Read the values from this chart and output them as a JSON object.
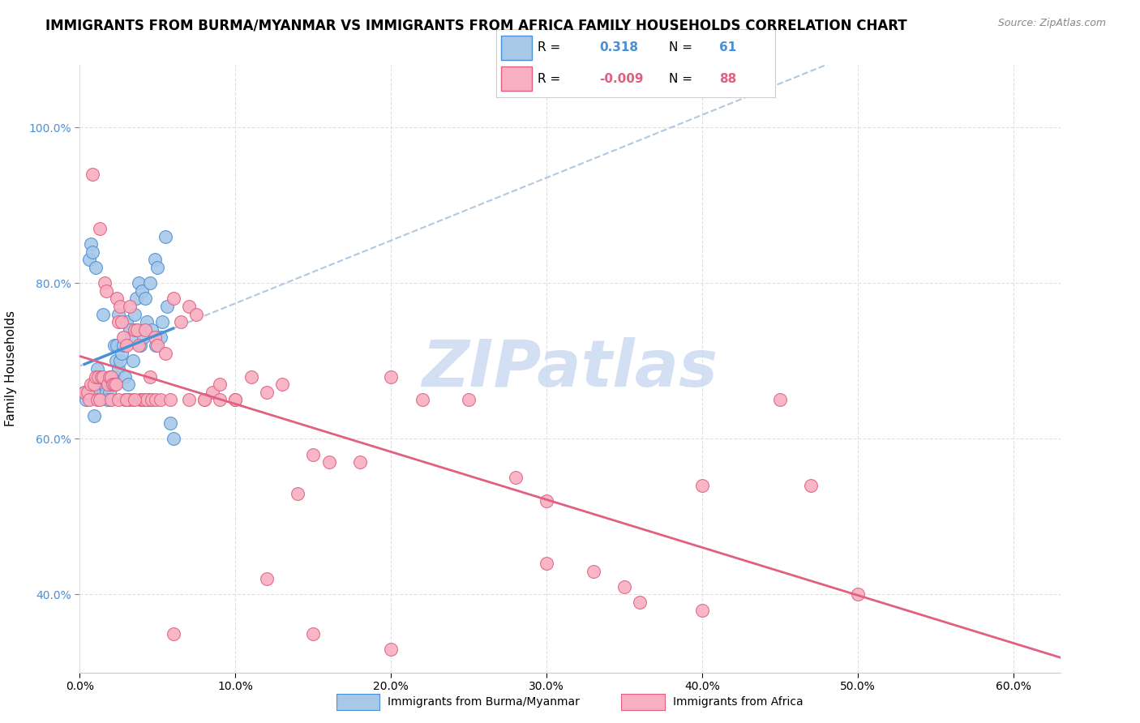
{
  "title": "IMMIGRANTS FROM BURMA/MYANMAR VS IMMIGRANTS FROM AFRICA FAMILY HOUSEHOLDS CORRELATION CHART",
  "source": "Source: ZipAtlas.com",
  "ylabel": "Family Households",
  "xlim": [
    0.0,
    0.63
  ],
  "ylim": [
    0.3,
    1.08
  ],
  "legend_r_blue": "0.318",
  "legend_n_blue": "61",
  "legend_r_pink": "-0.009",
  "legend_n_pink": "88",
  "blue_color": "#a8c8e8",
  "pink_color": "#f8b0c0",
  "blue_line_color": "#4a90d9",
  "pink_line_color": "#e06080",
  "dashed_line_color": "#b0c8e0",
  "watermark_color": "#c8d8f0",
  "grid_color": "#e0e0e0",
  "blue_scatter_x": [
    0.005,
    0.006,
    0.007,
    0.008,
    0.009,
    0.01,
    0.011,
    0.012,
    0.013,
    0.014,
    0.015,
    0.015,
    0.016,
    0.017,
    0.018,
    0.019,
    0.02,
    0.021,
    0.022,
    0.022,
    0.023,
    0.024,
    0.025,
    0.025,
    0.026,
    0.027,
    0.028,
    0.029,
    0.03,
    0.031,
    0.032,
    0.033,
    0.034,
    0.035,
    0.036,
    0.037,
    0.038,
    0.039,
    0.04,
    0.041,
    0.042,
    0.043,
    0.044,
    0.045,
    0.046,
    0.048,
    0.049,
    0.05,
    0.052,
    0.053,
    0.055,
    0.056,
    0.058,
    0.06,
    0.003,
    0.004,
    0.004,
    0.018,
    0.031,
    0.04,
    0.044
  ],
  "blue_scatter_y": [
    0.655,
    0.83,
    0.85,
    0.84,
    0.63,
    0.82,
    0.69,
    0.66,
    0.66,
    0.68,
    0.67,
    0.76,
    0.67,
    0.66,
    0.65,
    0.66,
    0.67,
    0.68,
    0.68,
    0.72,
    0.7,
    0.72,
    0.69,
    0.76,
    0.7,
    0.71,
    0.72,
    0.68,
    0.75,
    0.67,
    0.74,
    0.73,
    0.7,
    0.76,
    0.78,
    0.74,
    0.8,
    0.72,
    0.79,
    0.73,
    0.78,
    0.75,
    0.65,
    0.8,
    0.74,
    0.83,
    0.72,
    0.82,
    0.73,
    0.75,
    0.86,
    0.77,
    0.62,
    0.6,
    0.66,
    0.66,
    0.65,
    0.65,
    0.65,
    0.65,
    0.65
  ],
  "pink_scatter_x": [
    0.003,
    0.005,
    0.006,
    0.007,
    0.008,
    0.009,
    0.01,
    0.011,
    0.012,
    0.013,
    0.014,
    0.015,
    0.016,
    0.017,
    0.018,
    0.019,
    0.02,
    0.021,
    0.022,
    0.023,
    0.024,
    0.025,
    0.026,
    0.027,
    0.028,
    0.029,
    0.03,
    0.031,
    0.032,
    0.034,
    0.035,
    0.037,
    0.038,
    0.039,
    0.04,
    0.041,
    0.042,
    0.043,
    0.045,
    0.046,
    0.048,
    0.049,
    0.05,
    0.052,
    0.055,
    0.058,
    0.06,
    0.065,
    0.07,
    0.075,
    0.08,
    0.085,
    0.09,
    0.1,
    0.11,
    0.12,
    0.13,
    0.14,
    0.15,
    0.16,
    0.18,
    0.2,
    0.22,
    0.25,
    0.28,
    0.3,
    0.33,
    0.36,
    0.4,
    0.47,
    0.5,
    0.013,
    0.02,
    0.025,
    0.03,
    0.035,
    0.06,
    0.07,
    0.08,
    0.09,
    0.1,
    0.12,
    0.15,
    0.2,
    0.3,
    0.35,
    0.4,
    0.45
  ],
  "pink_scatter_y": [
    0.66,
    0.66,
    0.65,
    0.67,
    0.94,
    0.67,
    0.68,
    0.65,
    0.68,
    0.87,
    0.68,
    0.68,
    0.8,
    0.79,
    0.67,
    0.68,
    0.68,
    0.67,
    0.67,
    0.67,
    0.78,
    0.75,
    0.77,
    0.75,
    0.73,
    0.65,
    0.72,
    0.65,
    0.77,
    0.65,
    0.74,
    0.74,
    0.72,
    0.65,
    0.65,
    0.65,
    0.74,
    0.65,
    0.68,
    0.65,
    0.73,
    0.65,
    0.72,
    0.65,
    0.71,
    0.65,
    0.78,
    0.75,
    0.77,
    0.76,
    0.65,
    0.66,
    0.67,
    0.65,
    0.68,
    0.66,
    0.67,
    0.53,
    0.58,
    0.57,
    0.57,
    0.68,
    0.65,
    0.65,
    0.55,
    0.52,
    0.43,
    0.39,
    0.38,
    0.54,
    0.4,
    0.65,
    0.65,
    0.65,
    0.65,
    0.65,
    0.35,
    0.65,
    0.65,
    0.65,
    0.65,
    0.42,
    0.35,
    0.33,
    0.44,
    0.41,
    0.54,
    0.65
  ]
}
